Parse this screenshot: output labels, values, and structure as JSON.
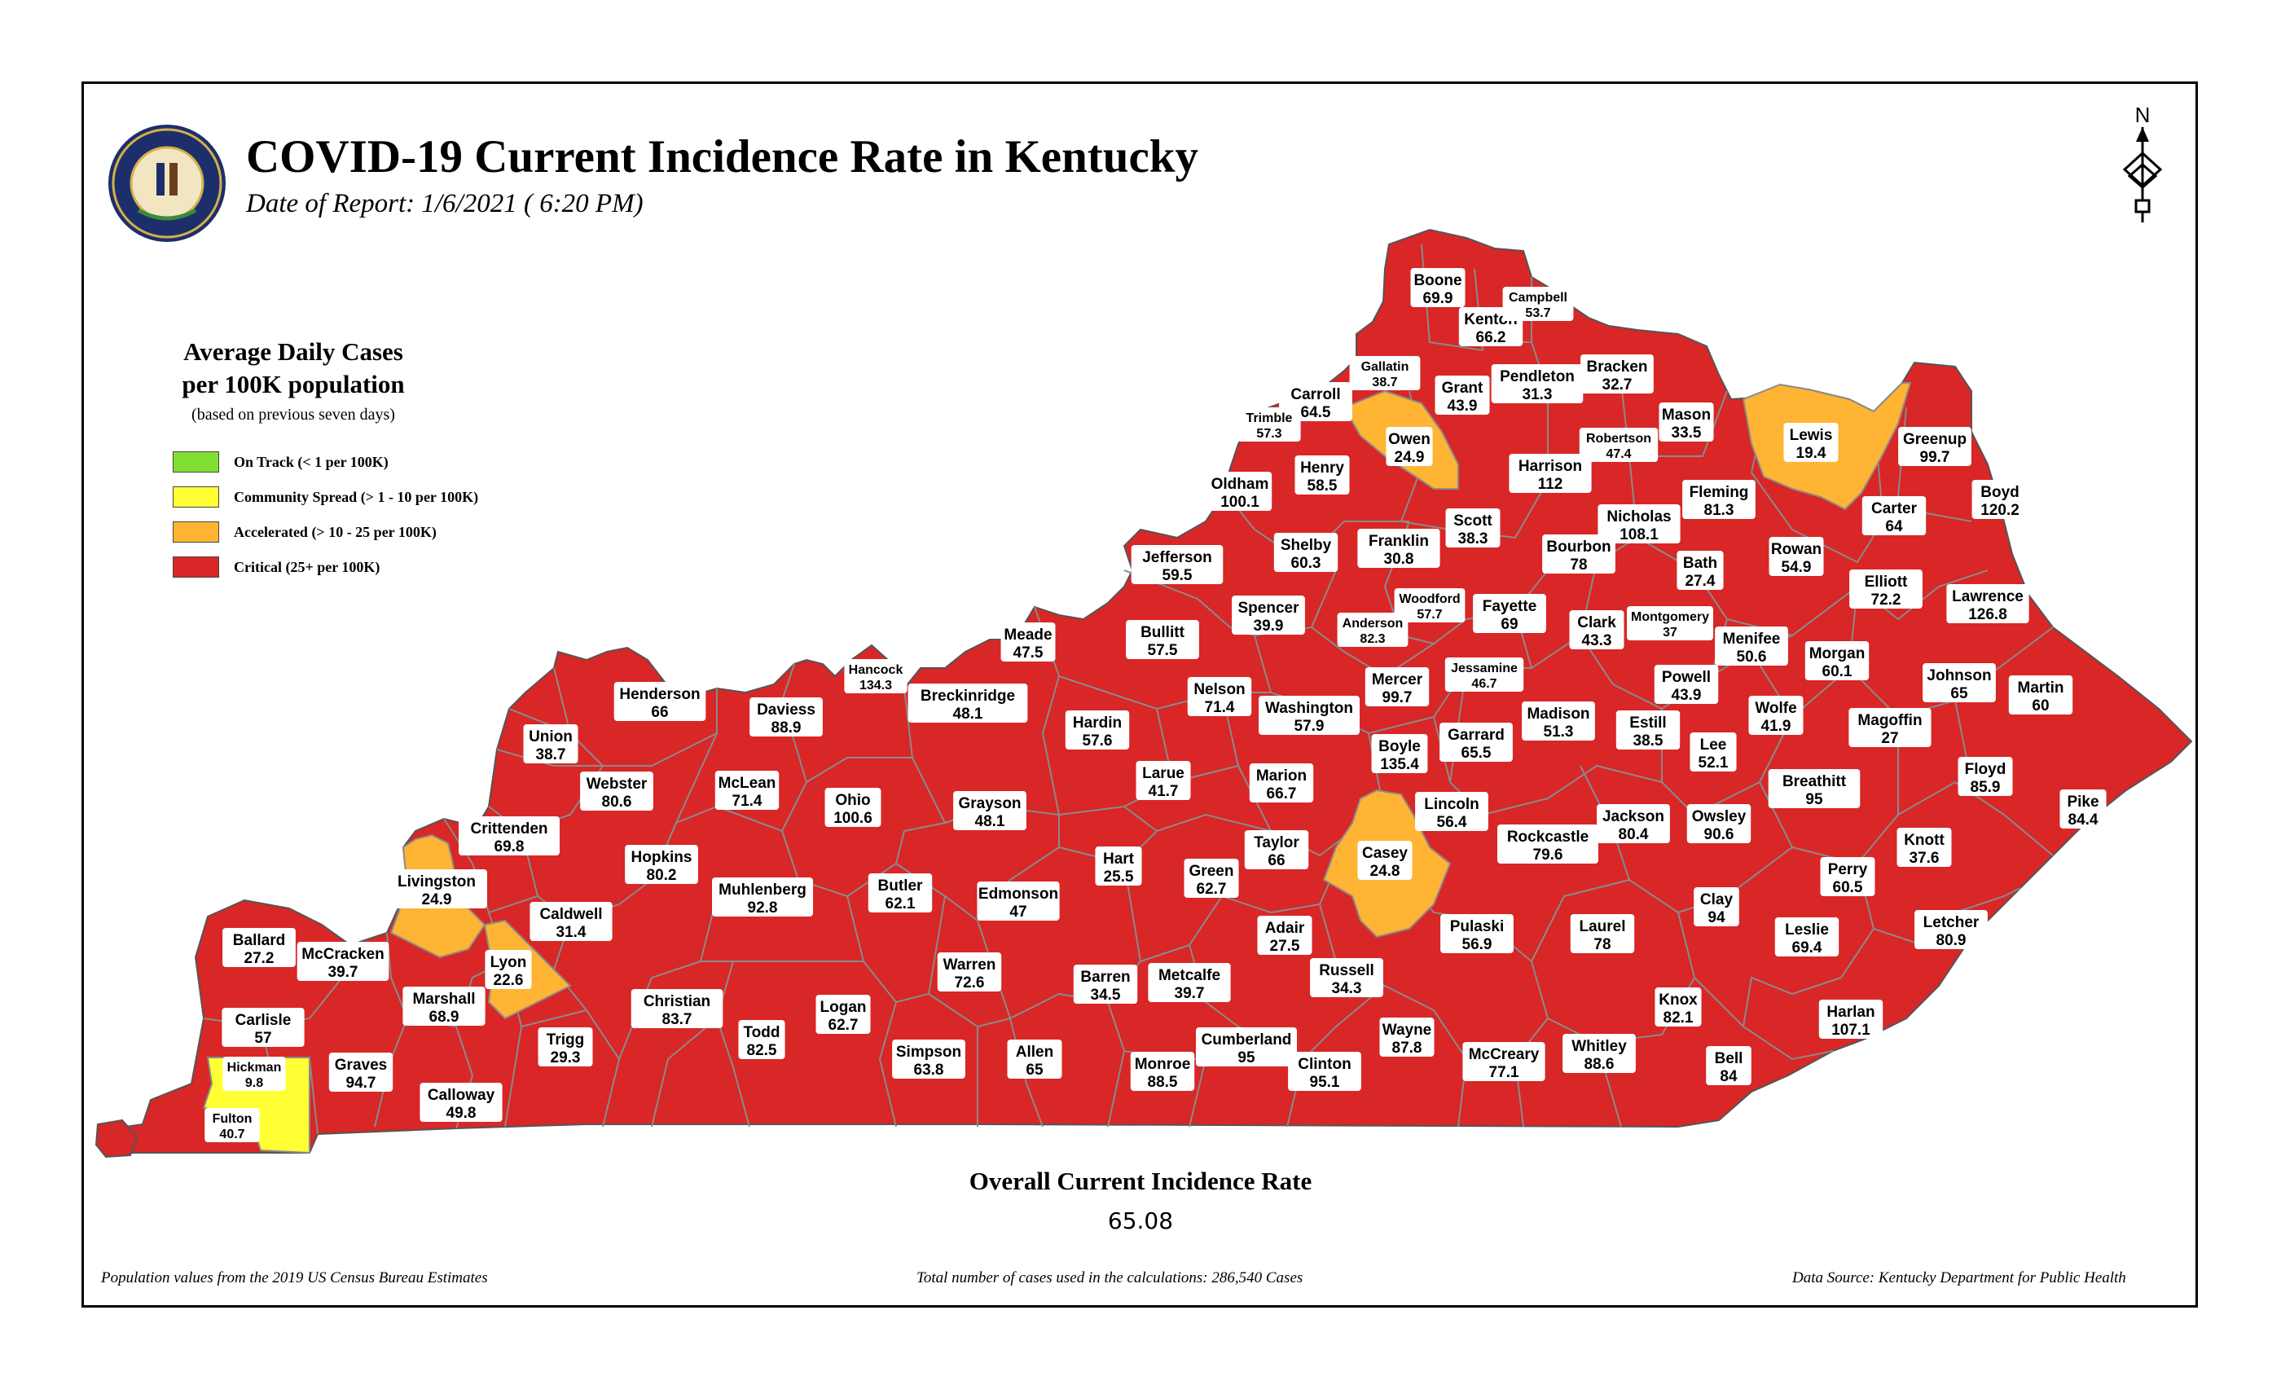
{
  "title": "COVID-19 Current Incidence Rate in Kentucky",
  "subtitle": "Date of Report: 1/6/2021 ( 6:20 PM)",
  "seal": {
    "text": "COMMONWEALTH OF KENTUCKY",
    "icon": "kentucky-state-seal-icon"
  },
  "north_arrow": {
    "label": "N",
    "icon": "north-arrow-icon"
  },
  "legend": {
    "title_line1": "Average Daily Cases",
    "title_line2": "per 100K population",
    "note": "(based on previous seven days)",
    "items": [
      {
        "label": "On Track (< 1 per 100K)",
        "color": "#7fe032"
      },
      {
        "label": "Community Spread (> 1 - 10 per 100K)",
        "color": "#ffff33"
      },
      {
        "label": "Accelerated (> 10 - 25 per 100K)",
        "color": "#ffb433"
      },
      {
        "label": "Critical (25+ per 100K)",
        "color": "#d92626"
      }
    ]
  },
  "colors": {
    "critical": "#d92626",
    "accelerated": "#ffb433",
    "community": "#ffff33",
    "on_track": "#7fe032",
    "border": "#888888"
  },
  "counties": [
    {
      "name": "Boone",
      "value": "69.9"
    },
    {
      "name": "Kenton",
      "value": "66.2"
    },
    {
      "name": "Campbell",
      "value": "53.7"
    },
    {
      "name": "Gallatin",
      "value": "38.7"
    },
    {
      "name": "Carroll",
      "value": "64.5"
    },
    {
      "name": "Trimble",
      "value": "57.3"
    },
    {
      "name": "Grant",
      "value": "43.9"
    },
    {
      "name": "Pendleton",
      "value": "31.3"
    },
    {
      "name": "Bracken",
      "value": "32.7"
    },
    {
      "name": "Mason",
      "value": "33.5"
    },
    {
      "name": "Lewis",
      "value": "19.4"
    },
    {
      "name": "Greenup",
      "value": "99.7"
    },
    {
      "name": "Owen",
      "value": "24.9"
    },
    {
      "name": "Robertson",
      "value": "47.4"
    },
    {
      "name": "Harrison",
      "value": "112"
    },
    {
      "name": "Oldham",
      "value": "100.1"
    },
    {
      "name": "Henry",
      "value": "58.5"
    },
    {
      "name": "Scott",
      "value": "38.3"
    },
    {
      "name": "Nicholas",
      "value": "108.1"
    },
    {
      "name": "Fleming",
      "value": "81.3"
    },
    {
      "name": "Boyd",
      "value": "120.2"
    },
    {
      "name": "Carter",
      "value": "64"
    },
    {
      "name": "Jefferson",
      "value": "59.5"
    },
    {
      "name": "Shelby",
      "value": "60.3"
    },
    {
      "name": "Franklin",
      "value": "30.8"
    },
    {
      "name": "Bourbon",
      "value": "78"
    },
    {
      "name": "Bath",
      "value": "27.4"
    },
    {
      "name": "Rowan",
      "value": "54.9"
    },
    {
      "name": "Elliott",
      "value": "72.2"
    },
    {
      "name": "Lawrence",
      "value": "126.8"
    },
    {
      "name": "Woodford",
      "value": "57.7"
    },
    {
      "name": "Spencer",
      "value": "39.9"
    },
    {
      "name": "Fayette",
      "value": "69"
    },
    {
      "name": "Montgomery",
      "value": "37"
    },
    {
      "name": "Clark",
      "value": "43.3"
    },
    {
      "name": "Anderson",
      "value": "82.3"
    },
    {
      "name": "Bullitt",
      "value": "57.5"
    },
    {
      "name": "Meade",
      "value": "47.5"
    },
    {
      "name": "Menifee",
      "value": "50.6"
    },
    {
      "name": "Morgan",
      "value": "60.1"
    },
    {
      "name": "Jessamine",
      "value": "46.7"
    },
    {
      "name": "Johnson",
      "value": "65"
    },
    {
      "name": "Martin",
      "value": "60"
    },
    {
      "name": "Hancock",
      "value": "134.3"
    },
    {
      "name": "Henderson",
      "value": "66"
    },
    {
      "name": "Breckinridge",
      "value": "48.1"
    },
    {
      "name": "Daviess",
      "value": "88.9"
    },
    {
      "name": "Nelson",
      "value": "71.4"
    },
    {
      "name": "Mercer",
      "value": "99.7"
    },
    {
      "name": "Powell",
      "value": "43.9"
    },
    {
      "name": "Washington",
      "value": "57.9"
    },
    {
      "name": "Wolfe",
      "value": "41.9"
    },
    {
      "name": "Madison",
      "value": "51.3"
    },
    {
      "name": "Magoffin",
      "value": "27"
    },
    {
      "name": "Hardin",
      "value": "57.6"
    },
    {
      "name": "Estill",
      "value": "38.5"
    },
    {
      "name": "Garrard",
      "value": "65.5"
    },
    {
      "name": "Boyle",
      "value": "135.4"
    },
    {
      "name": "Union",
      "value": "38.7"
    },
    {
      "name": "Lee",
      "value": "52.1"
    },
    {
      "name": "Breathitt",
      "value": "95"
    },
    {
      "name": "Floyd",
      "value": "85.9"
    },
    {
      "name": "Webster",
      "value": "80.6"
    },
    {
      "name": "McLean",
      "value": "71.4"
    },
    {
      "name": "Larue",
      "value": "41.7"
    },
    {
      "name": "Marion",
      "value": "66.7"
    },
    {
      "name": "Ohio",
      "value": "100.6"
    },
    {
      "name": "Grayson",
      "value": "48.1"
    },
    {
      "name": "Lincoln",
      "value": "56.4"
    },
    {
      "name": "Jackson",
      "value": "80.4"
    },
    {
      "name": "Owsley",
      "value": "90.6"
    },
    {
      "name": "Pike",
      "value": "84.4"
    },
    {
      "name": "Crittenden",
      "value": "69.8"
    },
    {
      "name": "Rockcastle",
      "value": "79.6"
    },
    {
      "name": "Casey",
      "value": "24.8"
    },
    {
      "name": "Taylor",
      "value": "66"
    },
    {
      "name": "Knott",
      "value": "37.6"
    },
    {
      "name": "Hopkins",
      "value": "80.2"
    },
    {
      "name": "Livingston",
      "value": "24.9"
    },
    {
      "name": "Hart",
      "value": "25.5"
    },
    {
      "name": "Perry",
      "value": "60.5"
    },
    {
      "name": "Muhlenberg",
      "value": "92.8"
    },
    {
      "name": "Butler",
      "value": "62.1"
    },
    {
      "name": "Green",
      "value": "62.7"
    },
    {
      "name": "Edmonson",
      "value": "47"
    },
    {
      "name": "Clay",
      "value": "94"
    },
    {
      "name": "Caldwell",
      "value": "31.4"
    },
    {
      "name": "Ballard",
      "value": "27.2"
    },
    {
      "name": "Laurel",
      "value": "78"
    },
    {
      "name": "Pulaski",
      "value": "56.9"
    },
    {
      "name": "Adair",
      "value": "27.5"
    },
    {
      "name": "Letcher",
      "value": "80.9"
    },
    {
      "name": "Leslie",
      "value": "69.4"
    },
    {
      "name": "McCracken",
      "value": "39.7"
    },
    {
      "name": "Lyon",
      "value": "22.6"
    },
    {
      "name": "Warren",
      "value": "72.6"
    },
    {
      "name": "Russell",
      "value": "34.3"
    },
    {
      "name": "Marshall",
      "value": "68.9"
    },
    {
      "name": "Christian",
      "value": "83.7"
    },
    {
      "name": "Barren",
      "value": "34.5"
    },
    {
      "name": "Metcalfe",
      "value": "39.7"
    },
    {
      "name": "Logan",
      "value": "62.7"
    },
    {
      "name": "Knox",
      "value": "82.1"
    },
    {
      "name": "Harlan",
      "value": "107.1"
    },
    {
      "name": "Carlisle",
      "value": "57"
    },
    {
      "name": "Todd",
      "value": "82.5"
    },
    {
      "name": "Trigg",
      "value": "29.3"
    },
    {
      "name": "Wayne",
      "value": "87.8"
    },
    {
      "name": "Cumberland",
      "value": "95"
    },
    {
      "name": "Whitley",
      "value": "88.6"
    },
    {
      "name": "Hickman",
      "value": "9.8"
    },
    {
      "name": "Simpson",
      "value": "63.8"
    },
    {
      "name": "Allen",
      "value": "65"
    },
    {
      "name": "Graves",
      "value": "94.7"
    },
    {
      "name": "McCreary",
      "value": "77.1"
    },
    {
      "name": "Clinton",
      "value": "95.1"
    },
    {
      "name": "Monroe",
      "value": "88.5"
    },
    {
      "name": "Bell",
      "value": "84"
    },
    {
      "name": "Calloway",
      "value": "49.8"
    },
    {
      "name": "Fulton",
      "value": "40.7"
    }
  ],
  "overall": {
    "label": "Overall Current Incidence Rate",
    "value": "65.08"
  },
  "footer": {
    "left": "Population values from the 2019 US Census Bureau Estimates",
    "center": "Total number of cases used in the calculations: 286,540 Cases",
    "right": "Data Source: Kentucky Department for Public Health"
  }
}
